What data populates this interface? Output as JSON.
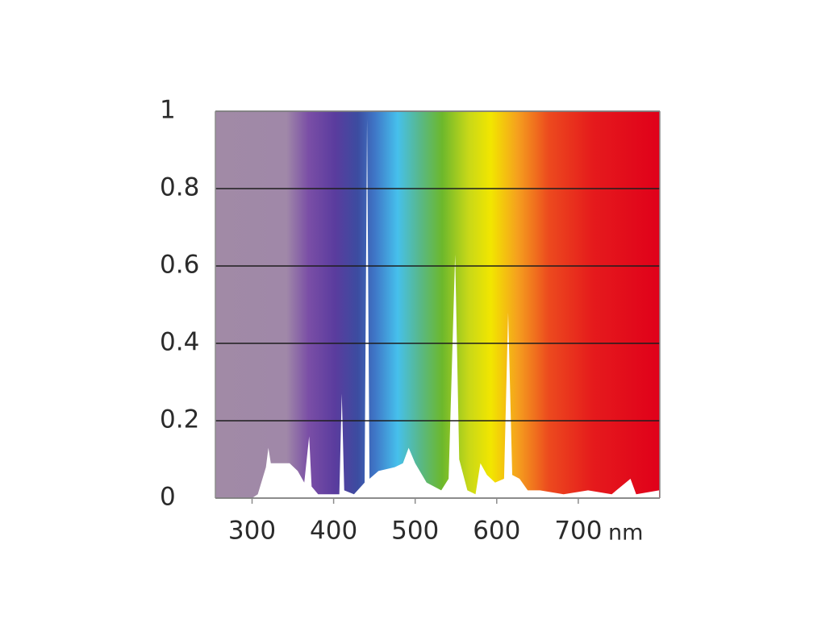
{
  "chart_data": {
    "type": "area",
    "x_unit": "nm",
    "x": [
      300,
      307,
      317,
      320,
      323,
      331,
      346,
      356,
      364,
      370,
      373,
      381,
      396,
      407,
      410,
      413,
      425,
      438,
      441,
      444,
      455,
      475,
      485,
      492,
      500,
      514,
      532,
      541,
      549,
      554,
      564,
      574,
      580,
      588,
      598,
      609,
      614,
      619,
      628,
      638,
      653,
      682,
      712,
      741,
      764,
      771,
      799
    ],
    "values": [
      0,
      0.01,
      0.08,
      0.13,
      0.09,
      0.09,
      0.09,
      0.07,
      0.04,
      0.16,
      0.03,
      0.01,
      0.01,
      0.01,
      0.27,
      0.02,
      0.01,
      0.04,
      0.98,
      0.05,
      0.07,
      0.08,
      0.09,
      0.13,
      0.09,
      0.04,
      0.02,
      0.05,
      0.63,
      0.1,
      0.02,
      0.01,
      0.09,
      0.06,
      0.04,
      0.05,
      0.48,
      0.06,
      0.05,
      0.02,
      0.02,
      0.01,
      0.02,
      0.01,
      0.05,
      0.01,
      0.02
    ],
    "color": "#ffffff",
    "xlim": [
      255,
      800
    ],
    "ylim": [
      0,
      1
    ],
    "xticks": [
      300,
      400,
      500,
      600,
      700
    ],
    "yticks": [
      0,
      0.2,
      0.4,
      0.6,
      0.8,
      1
    ],
    "grid": true,
    "grid_color": "#1e1e1e"
  }
}
